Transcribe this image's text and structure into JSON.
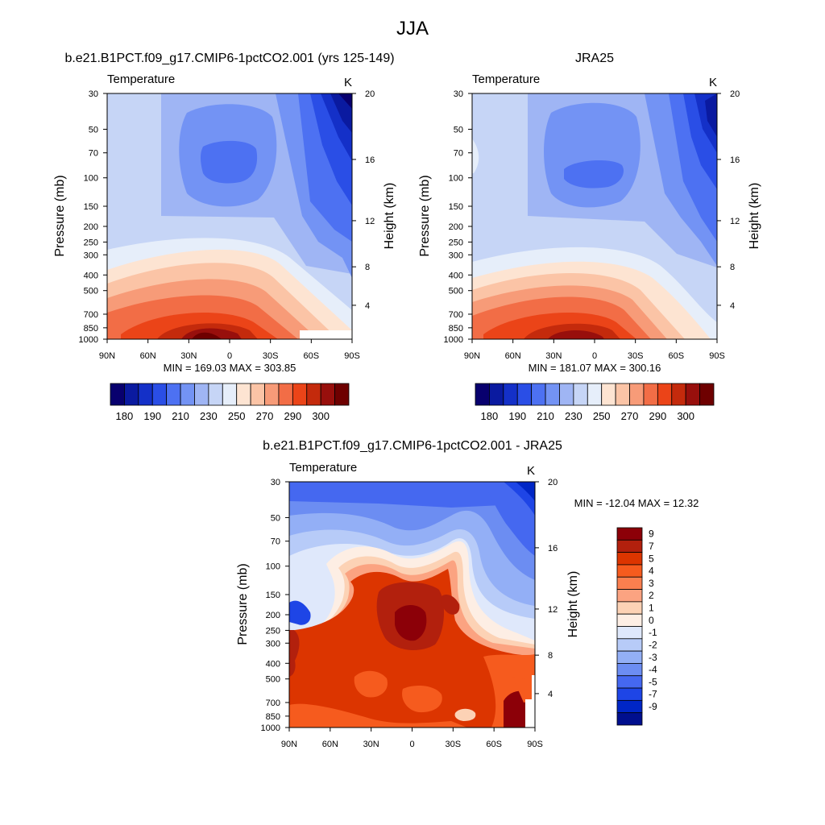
{
  "title": "JJA",
  "chart_data": [
    {
      "type": "heatmap",
      "title": "b.e21.B1PCT.f09_g17.CMIP6-1pctCO2.001 (yrs 125-149)",
      "left_label": "Temperature",
      "right_label": "K",
      "ylabel": "Pressure (mb)",
      "y2label": "Height (km)",
      "xticks": [
        "90N",
        "60N",
        "30N",
        "0",
        "30S",
        "60S",
        "90S"
      ],
      "yticks": [
        "30",
        "50",
        "70",
        "100",
        "150",
        "200",
        "250",
        "300",
        "400",
        "500",
        "700",
        "850",
        "1000"
      ],
      "y2ticks": [
        "20",
        "16",
        "12",
        "8",
        "4"
      ],
      "stats": "MIN = 169.03  MAX = 303.85",
      "colorbar_levels": [
        180,
        185,
        190,
        200,
        210,
        220,
        230,
        240,
        250,
        260,
        270,
        280,
        290,
        295,
        300
      ],
      "colorbar_labels": [
        "180",
        "190",
        "210",
        "230",
        "250",
        "270",
        "290",
        "300"
      ],
      "min": 169.03,
      "max": 303.85
    },
    {
      "type": "heatmap",
      "title": "JRA25",
      "left_label": "Temperature",
      "right_label": "K",
      "ylabel": "Pressure (mb)",
      "y2label": "Height (km)",
      "xticks": [
        "90N",
        "60N",
        "30N",
        "0",
        "30S",
        "60S",
        "90S"
      ],
      "yticks": [
        "30",
        "50",
        "70",
        "100",
        "150",
        "200",
        "250",
        "300",
        "400",
        "500",
        "700",
        "850",
        "1000"
      ],
      "y2ticks": [
        "20",
        "16",
        "12",
        "8",
        "4"
      ],
      "stats": "MIN = 181.07  MAX = 300.16",
      "colorbar_levels": [
        180,
        185,
        190,
        200,
        210,
        220,
        230,
        240,
        250,
        260,
        270,
        280,
        290,
        295,
        300
      ],
      "colorbar_labels": [
        "180",
        "190",
        "210",
        "230",
        "250",
        "270",
        "290",
        "300"
      ],
      "min": 181.07,
      "max": 300.16
    },
    {
      "type": "heatmap",
      "title": "b.e21.B1PCT.f09_g17.CMIP6-1pctCO2.001 - JRA25",
      "left_label": "Temperature",
      "right_label": "K",
      "ylabel": "Pressure (mb)",
      "y2label": "Height (km)",
      "xticks": [
        "90N",
        "60N",
        "30N",
        "0",
        "30S",
        "60S",
        "90S"
      ],
      "yticks": [
        "30",
        "50",
        "70",
        "100",
        "150",
        "200",
        "250",
        "300",
        "400",
        "500",
        "700",
        "850",
        "1000"
      ],
      "y2ticks": [
        "20",
        "16",
        "12",
        "8",
        "4"
      ],
      "stats": "MIN = -12.04  MAX =  12.32",
      "colorbar_labels": [
        "9",
        "7",
        "5",
        "4",
        "3",
        "2",
        "1",
        "0",
        "-1",
        "-2",
        "-3",
        "-4",
        "-5",
        "-7",
        "-9"
      ],
      "min": -12.04,
      "max": 12.32
    }
  ],
  "colors": {
    "temp_scale": [
      "#08006e",
      "#0a1aa0",
      "#1430c8",
      "#2a4ee6",
      "#4d71f2",
      "#7393f4",
      "#9fb5f4",
      "#c6d5f6",
      "#e6eefa",
      "#fde4d2",
      "#fbc4a6",
      "#f79b78",
      "#f26d46",
      "#eb4418",
      "#c42a0c",
      "#980f0c",
      "#6e0000"
    ],
    "diff_scale": [
      "#8c0008",
      "#b2200d",
      "#dc3500",
      "#f65b1e",
      "#fb7f4f",
      "#fba381",
      "#fcd2b5",
      "#fdeee4",
      "#dfe8fb",
      "#b7cbf8",
      "#93aff6",
      "#6c8df2",
      "#4568f0",
      "#1e45e6",
      "#0026c6",
      "#000f8e"
    ]
  }
}
